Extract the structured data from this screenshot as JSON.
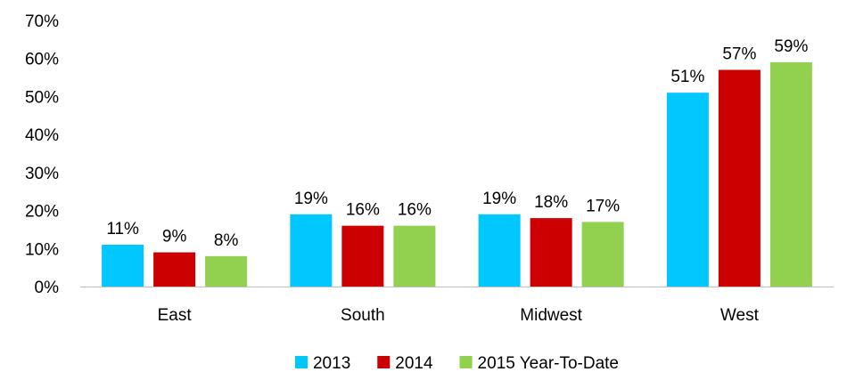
{
  "chart_data": {
    "type": "bar",
    "title": "",
    "xlabel": "",
    "ylabel": "",
    "categories": [
      "East",
      "South",
      "Midwest",
      "West"
    ],
    "series": [
      {
        "name": "2013",
        "color": "#00c8ff",
        "values": [
          11,
          19,
          19,
          51
        ],
        "labels": [
          "11%",
          "19%",
          "19%",
          "51%"
        ]
      },
      {
        "name": "2014",
        "color": "#cc0000",
        "values": [
          9,
          16,
          18,
          57
        ],
        "labels": [
          "9%",
          "16%",
          "18%",
          "57%"
        ]
      },
      {
        "name": "2015 Year-To-Date",
        "color": "#92d050",
        "values": [
          8,
          16,
          17,
          59
        ],
        "labels": [
          "8%",
          "16%",
          "17%",
          "59%"
        ]
      }
    ],
    "ylim": [
      0,
      70
    ],
    "y_ticks": [
      0,
      10,
      20,
      30,
      40,
      50,
      60,
      70
    ],
    "y_tick_labels": [
      "0%",
      "10%",
      "20%",
      "30%",
      "40%",
      "50%",
      "60%",
      "70%"
    ],
    "grid": false,
    "legend_position": "bottom"
  }
}
